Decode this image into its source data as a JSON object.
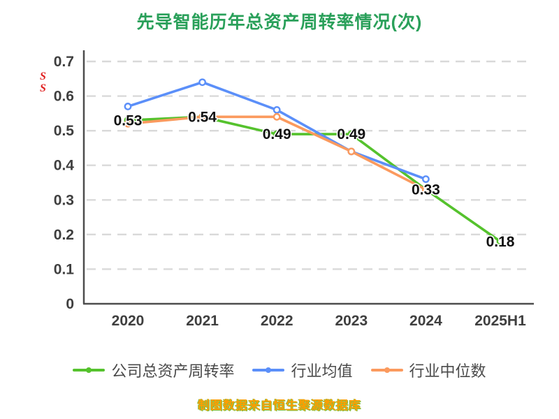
{
  "title": "先导智能历年总资产周转率情况(次)",
  "watermark": "S\nS",
  "footer": "制图数据来自恒生聚源数据库",
  "colors": {
    "title": "#2aa05a",
    "company": "#55c22d",
    "industry_avg": "#5b8ff9",
    "industry_median": "#fb9a5e",
    "grid": "#d9d9d9",
    "axis": "#4d4d4d",
    "tick_label": "#3f3f3f",
    "data_label": "#111111",
    "footer": "#ff9d00",
    "footer_glow": "#79c043",
    "watermark": "#e02020"
  },
  "chart_data": {
    "type": "line",
    "title": "先导智能历年总资产周转率情况(次)",
    "xlabel": "",
    "ylabel": "",
    "categories": [
      "2020",
      "2021",
      "2022",
      "2023",
      "2024",
      "2025H1"
    ],
    "series": [
      {
        "name": "公司总资产周转率",
        "color_key": "company",
        "values": [
          0.53,
          0.54,
          0.49,
          0.49,
          0.33,
          0.18
        ],
        "labels": [
          "0.53",
          "0.54",
          "0.49",
          "0.49",
          "0.33",
          "0.18"
        ],
        "labeled": true
      },
      {
        "name": "行业均值",
        "color_key": "industry_avg",
        "values": [
          0.57,
          0.64,
          0.56,
          0.44,
          0.36,
          null
        ],
        "labeled": false
      },
      {
        "name": "行业中位数",
        "color_key": "industry_median",
        "values": [
          0.52,
          0.54,
          0.54,
          0.44,
          0.33,
          null
        ],
        "labeled": false
      }
    ],
    "ylim": [
      0,
      0.7
    ],
    "yticks": [
      0,
      0.1,
      0.2,
      0.3,
      0.4,
      0.5,
      0.6,
      0.7
    ],
    "grid": true,
    "grid_style": "dashed",
    "legend_position": "bottom"
  }
}
